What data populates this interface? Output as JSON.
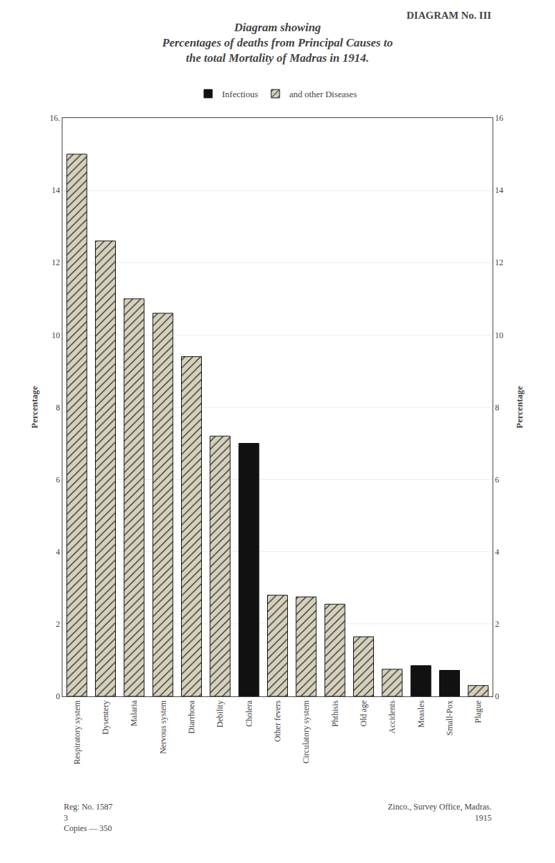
{
  "chart_data": {
    "type": "bar",
    "title": "Diagram showing\nPercentages of deaths from Principal Causes to\nthe total Mortality of Madras in 1914.",
    "ylabel": "Percentage",
    "y2label": "Percentage",
    "categories": [
      "Respiratory system",
      "Dysentery",
      "Malaria",
      "Nervous system",
      "Diarrhoea",
      "Debility",
      "Cholera",
      "Other fevers",
      "Circulatory system",
      "Phthisis",
      "Old age",
      "Accidents",
      "Measles",
      "Small-Pox",
      "Plague"
    ],
    "series": [
      {
        "name": "Infectious",
        "color": "#111111",
        "marker": "solid",
        "values": [
          null,
          null,
          null,
          null,
          null,
          null,
          7.0,
          null,
          null,
          null,
          null,
          null,
          0.85,
          0.72,
          null
        ]
      },
      {
        "name": "and other Diseases",
        "color": "#d5d0bb",
        "marker": "hatch",
        "values": [
          15.0,
          12.6,
          11.0,
          10.6,
          9.4,
          7.2,
          null,
          2.8,
          2.75,
          2.55,
          1.65,
          0.75,
          null,
          null,
          0.3
        ]
      }
    ],
    "ylim": [
      0,
      16
    ],
    "yticks": [
      0,
      2,
      4,
      6,
      8,
      10,
      12,
      14,
      {
        "value": 16,
        "label": "16."
      }
    ],
    "y2lim": [
      0,
      16
    ],
    "y2ticks": [
      0,
      2,
      4,
      6,
      8,
      10,
      12,
      14,
      16
    ],
    "grid": true,
    "legend": "top",
    "annotations": [
      "DIAGRAM No. III",
      "Reg: No. 1587",
      "3",
      "Copies — 350",
      "Zinco., Survey Office, Madras.",
      "1915"
    ]
  }
}
